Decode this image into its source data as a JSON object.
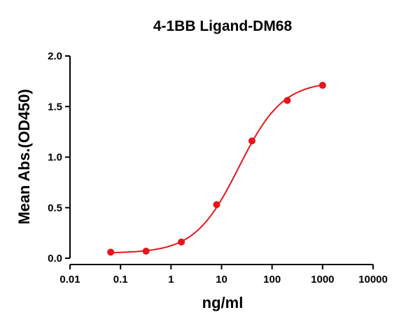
{
  "chart_data": {
    "type": "scatter",
    "title": "4-1BB Ligand-DM68",
    "xlabel": "ng/ml",
    "ylabel": "Mean Abs.(OD450)",
    "x_scale": "log",
    "xlim": [
      0.01,
      10000
    ],
    "ylim": [
      0.0,
      2.0
    ],
    "x_ticks": [
      0.01,
      0.1,
      1,
      10,
      100,
      1000,
      10000
    ],
    "x_tick_labels": [
      "0.01",
      "0.1",
      "1",
      "10",
      "100",
      "1000",
      "10000"
    ],
    "y_ticks": [
      0.0,
      0.5,
      1.0,
      1.5,
      2.0
    ],
    "y_tick_labels": [
      "0.0",
      "0.5",
      "1.0",
      "1.5",
      "2.0"
    ],
    "grid": false,
    "legend": "none",
    "color": "#e8141b",
    "series": [
      {
        "x": [
          0.064,
          0.32,
          1.6,
          8,
          40,
          200,
          1000
        ],
        "y": [
          0.06,
          0.07,
          0.16,
          0.53,
          1.16,
          1.56,
          1.71
        ],
        "fit": "4PL"
      }
    ]
  }
}
